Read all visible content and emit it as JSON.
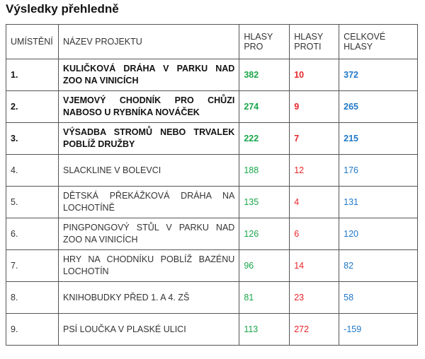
{
  "title": "Výsledky přehledně",
  "colors": {
    "pro": "#1aa64a",
    "proti": "#e8262a",
    "total": "#1f78c8"
  },
  "headers": [
    "UMÍSTĚNÍ",
    "NÁZEV PROJEKTU",
    "HLASY PRO",
    "HLASY PROTI",
    "CELKOVÉ HLASY"
  ],
  "rows": [
    {
      "rank": "1.",
      "name": "KULIČKOVÁ DRÁHA V PARKU NAD ZOO NA VINICÍCH",
      "pro": "382",
      "proti": "10",
      "total": "372"
    },
    {
      "rank": "2.",
      "name": "VJEMOVÝ CHODNÍK PRO CHŮZI NABOSO U RYBNÍKA NOVÁČEK",
      "pro": "274",
      "proti": "9",
      "total": "265"
    },
    {
      "rank": "3.",
      "name": "VÝSADBA STROMŮ NEBO TRVALEK POBLÍŽ DRUŽBY",
      "pro": "222",
      "proti": "7",
      "total": "215"
    },
    {
      "rank": "4.",
      "name": "SLACKLINE V BOLEVCI",
      "pro": "188",
      "proti": "12",
      "total": "176"
    },
    {
      "rank": "5.",
      "name": "DĚTSKÁ PŘEKÁŽKOVÁ DRÁHA NA LOCHOTÍNĚ",
      "pro": "135",
      "proti": "4",
      "total": "131"
    },
    {
      "rank": "6.",
      "name": "PINGPONGOVÝ STŮL V PARKU NAD ZOO NA VINICÍCH",
      "pro": "126",
      "proti": "6",
      "total": "120"
    },
    {
      "rank": "7.",
      "name": "HRY NA CHODNÍKU POBLÍŽ BAZÉNU LOCHOTÍN",
      "pro": "96",
      "proti": "14",
      "total": "82"
    },
    {
      "rank": "8.",
      "name": "KNIHOBUDKY PŘED 1. A 4. ZŠ",
      "pro": "81",
      "proti": "23",
      "total": "58"
    },
    {
      "rank": "9.",
      "name": "PSÍ LOUČKA V PLASKÉ ULICI",
      "pro": "113",
      "proti": "272",
      "total": "-159"
    }
  ]
}
